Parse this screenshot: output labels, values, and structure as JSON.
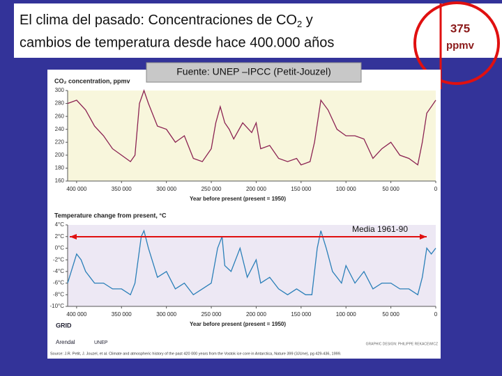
{
  "slide": {
    "title": {
      "line1": "El clima del pasado: Concentraciones de CO",
      "subscript": "2",
      "line1_end": " y",
      "line2": "cambios de temperatura desde hace 400.000 años"
    },
    "callout": {
      "line1": "375",
      "line2": "ppmv"
    },
    "source_box": "Fuente: UNEP –IPCC (Petit-Jouzel)",
    "annotation": "Media 1961-90",
    "logos": [
      "GRID",
      "Arendal",
      "UNEP"
    ],
    "credit": "GRAPHIC DESIGN: PHILIPPE REKACEWICZ",
    "source_note": "Source: J.R. Petit, J. Jouzel, et al. Climate and atmospheric history of the past 420 000 years from the Vostok ice core in Antarctica, Nature 399 (3JUne), pg 429-436, 1999."
  },
  "chart_data": [
    {
      "type": "line",
      "title": "CO₂ concentration, ppmv",
      "x_label": "Year before present (present = 1950)",
      "color": "#8b2252",
      "background": "#f8f6dc",
      "x": [
        410000,
        400000,
        390000,
        380000,
        370000,
        360000,
        350000,
        340000,
        335000,
        330000,
        325000,
        320000,
        310000,
        300000,
        290000,
        280000,
        270000,
        260000,
        250000,
        245000,
        240000,
        235000,
        230000,
        225000,
        215000,
        205000,
        200000,
        195000,
        185000,
        175000,
        165000,
        155000,
        150000,
        140000,
        135000,
        128000,
        120000,
        110000,
        100000,
        90000,
        80000,
        70000,
        60000,
        50000,
        40000,
        30000,
        20000,
        15000,
        10000,
        5000,
        0
      ],
      "values": [
        280,
        285,
        270,
        245,
        230,
        210,
        200,
        190,
        200,
        280,
        300,
        280,
        245,
        240,
        220,
        230,
        195,
        190,
        210,
        250,
        275,
        250,
        240,
        225,
        250,
        235,
        250,
        210,
        215,
        195,
        190,
        195,
        185,
        190,
        220,
        285,
        270,
        240,
        230,
        230,
        225,
        195,
        210,
        220,
        200,
        195,
        185,
        220,
        265,
        275,
        285
      ],
      "xlim": [
        410000,
        0
      ],
      "xticks": [
        {
          "value": 400000,
          "label": "400 000"
        },
        {
          "value": 350000,
          "label": "350 000"
        },
        {
          "value": 300000,
          "label": "300 000"
        },
        {
          "value": 250000,
          "label": "250 000"
        },
        {
          "value": 200000,
          "label": "200 000"
        },
        {
          "value": 150000,
          "label": "150 000"
        },
        {
          "value": 100000,
          "label": "100 000"
        },
        {
          "value": 50000,
          "label": "50 000"
        },
        0
      ],
      "ylim": [
        160,
        300
      ],
      "yticks": [
        160,
        180,
        200,
        220,
        240,
        260,
        280,
        300
      ],
      "grid": false
    },
    {
      "type": "line",
      "title": "Temperature change from present, °C",
      "x_label": "Year before present (present = 1950)",
      "color": "#2a7fb8",
      "background": "#ede8f4",
      "x": [
        410000,
        400000,
        395000,
        390000,
        380000,
        370000,
        360000,
        350000,
        340000,
        335000,
        328000,
        325000,
        320000,
        310000,
        300000,
        290000,
        280000,
        270000,
        260000,
        250000,
        243000,
        238000,
        235000,
        228000,
        218000,
        210000,
        200000,
        195000,
        185000,
        175000,
        165000,
        155000,
        145000,
        138000,
        132000,
        128000,
        122000,
        115000,
        105000,
        100000,
        90000,
        80000,
        70000,
        60000,
        50000,
        40000,
        30000,
        20000,
        15000,
        10000,
        5000,
        0
      ],
      "values": [
        -6,
        -1,
        -2,
        -4,
        -6,
        -6,
        -7,
        -7,
        -8,
        -6,
        2,
        3,
        0,
        -5,
        -4,
        -7,
        -6,
        -8,
        -7,
        -6,
        0,
        2,
        -3,
        -4,
        0,
        -5,
        -2,
        -6,
        -5,
        -7,
        -8,
        -7,
        -8,
        -8,
        0,
        3,
        0,
        -4,
        -6,
        -3,
        -6,
        -4,
        -7,
        -6,
        -6,
        -7,
        -7,
        -8,
        -5,
        0,
        -1,
        0
      ],
      "xlim": [
        410000,
        0
      ],
      "xticks": [
        {
          "value": 400000,
          "label": "400 000"
        },
        {
          "value": 350000,
          "label": "350 000"
        },
        {
          "value": 300000,
          "label": "300 000"
        },
        {
          "value": 250000,
          "label": "250 000"
        },
        {
          "value": 200000,
          "label": "200 000"
        },
        {
          "value": 150000,
          "label": "150 000"
        },
        {
          "value": 100000,
          "label": "100 000"
        },
        {
          "value": 50000,
          "label": "50 000"
        },
        0
      ],
      "ylim": [
        -10,
        4
      ],
      "yticks": [
        {
          "value": 4,
          "label": "4°C"
        },
        {
          "value": 2,
          "label": "2°C"
        },
        {
          "value": 0,
          "label": "0°C"
        },
        {
          "value": -2,
          "label": "-2°C"
        },
        {
          "value": -4,
          "label": "-4°C"
        },
        {
          "value": -6,
          "label": "-6°C"
        },
        {
          "value": -8,
          "label": "-8°C"
        },
        {
          "value": -10,
          "label": "-10°C"
        }
      ],
      "grid": false
    }
  ]
}
